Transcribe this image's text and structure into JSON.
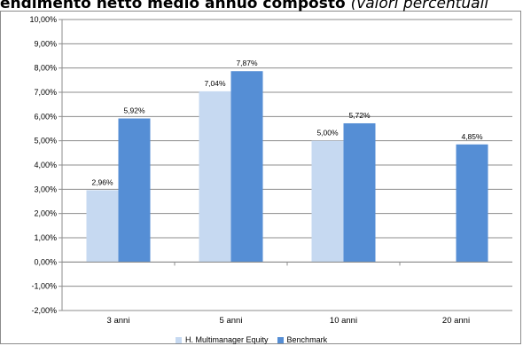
{
  "title": {
    "main": "endimento netto medio annuo composto",
    "sub": "(valori percentuali"
  },
  "chart_data": {
    "type": "bar",
    "categories": [
      "3 anni",
      "5 anni",
      "10 anni",
      "20 anni"
    ],
    "series": [
      {
        "name": "H. Multimanager Equity",
        "color": "#c6d9f1",
        "values": [
          2.96,
          7.04,
          5.0,
          null
        ],
        "labels": [
          "2,96%",
          "7,04%",
          "5,00%",
          ""
        ]
      },
      {
        "name": "Benchmark",
        "color": "#558ed5",
        "values": [
          5.92,
          7.87,
          5.72,
          4.85
        ],
        "labels": [
          "5,92%",
          "7,87%",
          "5,72%",
          "4,85%"
        ]
      }
    ],
    "ylim": [
      -2,
      10
    ],
    "y_ticks": [
      -2,
      -1,
      0,
      1,
      2,
      3,
      4,
      5,
      6,
      7,
      8,
      9,
      10
    ],
    "y_tick_labels": [
      "-2,00%",
      "-1,00%",
      "0,00%",
      "1,00%",
      "2,00%",
      "3,00%",
      "4,00%",
      "5,00%",
      "6,00%",
      "7,00%",
      "8,00%",
      "9,00%",
      "10,00%"
    ],
    "grid": true,
    "legend_position": "bottom"
  }
}
